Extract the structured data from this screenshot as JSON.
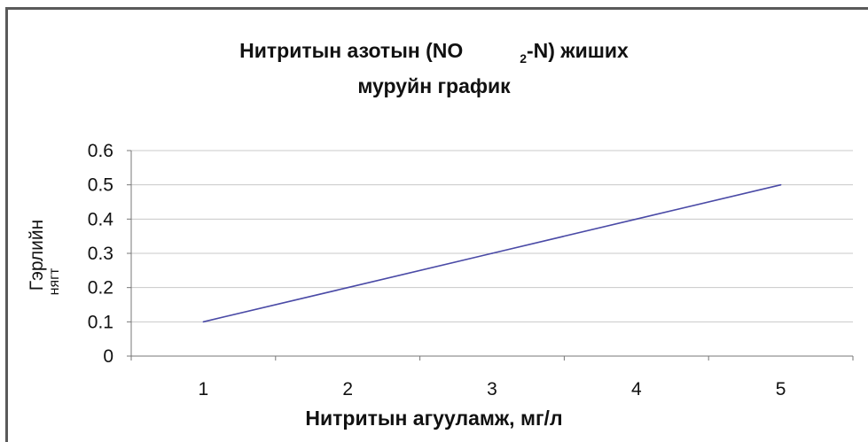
{
  "chart_data": {
    "type": "line",
    "title_line1_before": "Нитритын азотын (NO",
    "title_line1_sub": "2",
    "title_line1_after": "-N) жиших",
    "title_line2": "муруйн график",
    "xlabel": "Нитритын агууламж, мг/л",
    "ylabel": "Гэрлийн",
    "ylabel_line2": "нягт",
    "x": [
      1,
      2,
      3,
      4,
      5
    ],
    "xticks": [
      "1",
      "2",
      "3",
      "4",
      "5"
    ],
    "yticks": [
      "0",
      "0.1",
      "0.2",
      "0.3",
      "0.4",
      "0.5",
      "0.6"
    ],
    "ylim": [
      0,
      0.6
    ],
    "series": [
      {
        "values": [
          0.1,
          0.2,
          0.3,
          0.4,
          0.5
        ],
        "color": "#4a4aa6"
      }
    ],
    "grid": true,
    "legend": "none"
  }
}
